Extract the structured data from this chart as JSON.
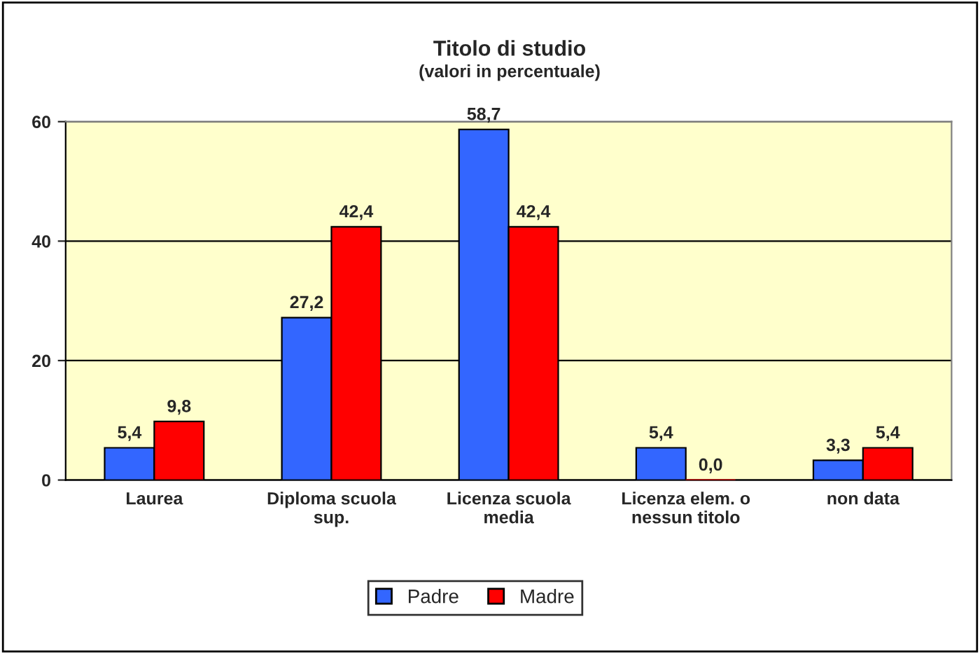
{
  "chart_data": {
    "type": "bar",
    "title": "Titolo di studio",
    "subtitle": "(valori in percentuale)",
    "categories": [
      "Laurea",
      "Diploma scuola\nsup.",
      "Licenza scuola\nmedia",
      "Licenza elem. o\nnessun titolo",
      "non data"
    ],
    "series": [
      {
        "name": "Padre",
        "color": "#3366ff",
        "values": [
          5.4,
          27.2,
          58.7,
          5.4,
          3.3
        ],
        "value_labels": [
          "5,4",
          "27,2",
          "58,7",
          "5,4",
          "3,3"
        ]
      },
      {
        "name": "Madre",
        "color": "#ff0000",
        "values": [
          9.8,
          42.4,
          42.4,
          0.0,
          5.4
        ],
        "value_labels": [
          "9,8",
          "42,4",
          "42,4",
          "0,0",
          "5,4"
        ]
      }
    ],
    "ylim": [
      0,
      60
    ],
    "yticks": [
      0,
      20,
      40,
      60
    ],
    "grid": "y",
    "legend": "bottom"
  }
}
